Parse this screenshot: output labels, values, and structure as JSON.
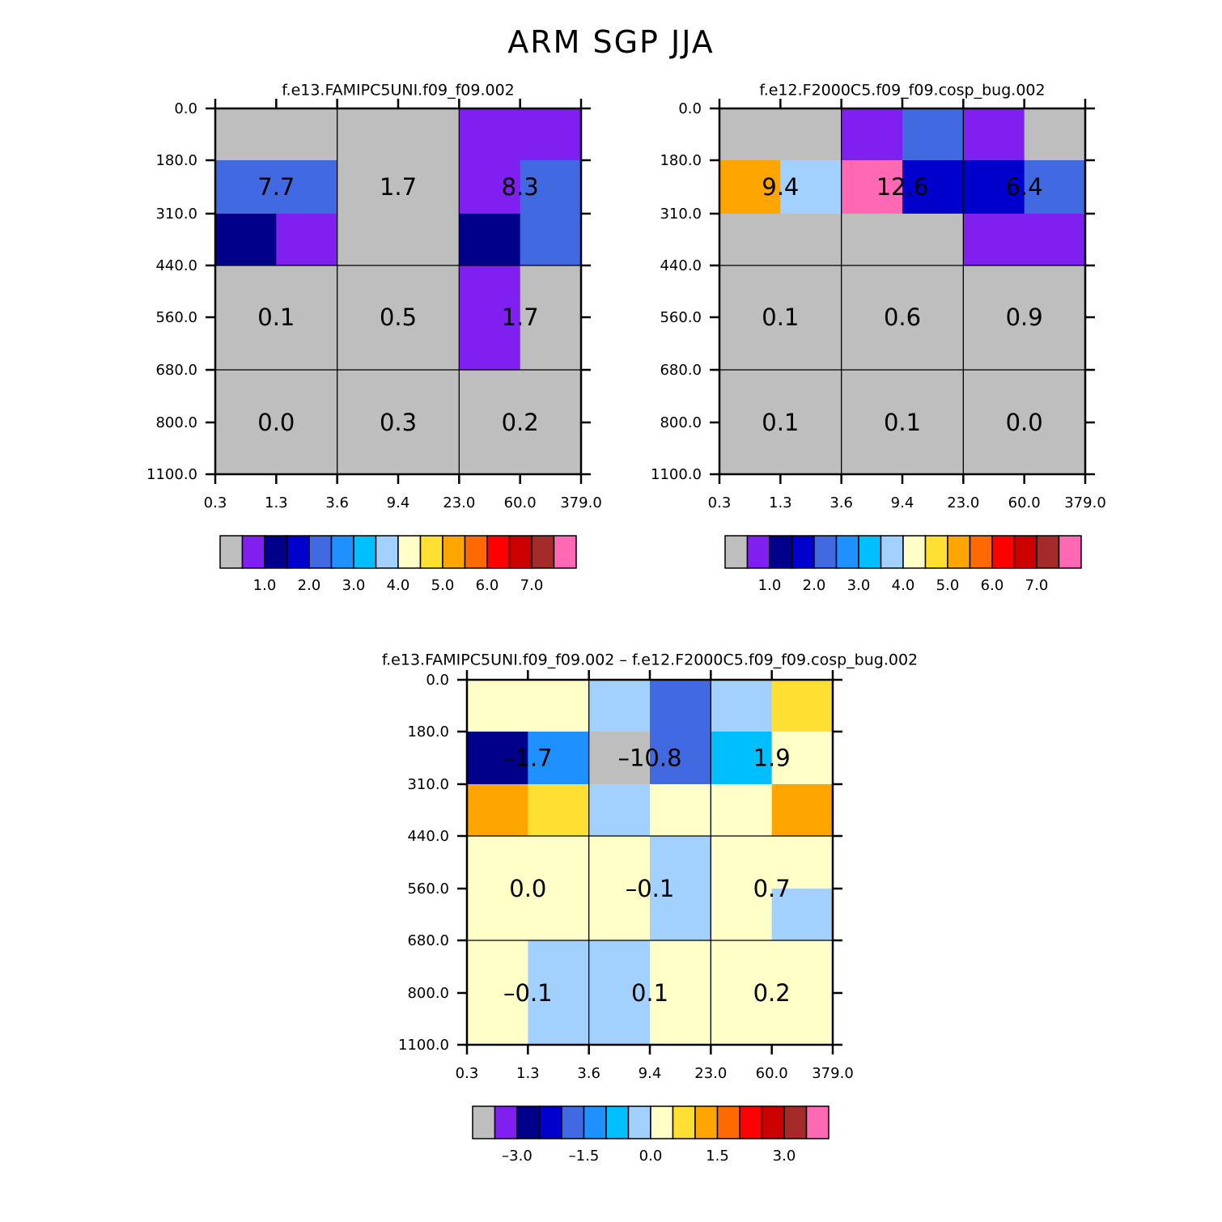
{
  "title": "ARM SGP JJA",
  "colors": {
    "gray": "#bebebe",
    "purple": "#8020f0",
    "navy": "#00008b",
    "blue": "#0000cd",
    "royal": "#4169e1",
    "dodger": "#1e90ff",
    "sky": "#00bfff",
    "lightblue": "#a2d0ff",
    "cream": "#ffffc8",
    "gold": "#ffe032",
    "orange": "#ffa500",
    "darkorange": "#ff6a00",
    "red": "#ff0000",
    "crimson": "#cd0000",
    "brown": "#a52a2a",
    "pink": "#ff69b4"
  },
  "chart_data": [
    {
      "type": "heatmap",
      "title": "f.e13.FAMIPC5UNI.f09_f09.002",
      "x_ticks": [
        "0.3",
        "1.3",
        "3.6",
        "9.4",
        "23.0",
        "60.0",
        "379.0"
      ],
      "y_ticks": [
        "0.0",
        "180.0",
        "310.0",
        "440.0",
        "560.0",
        "680.0",
        "800.0",
        "1100.0"
      ],
      "cells": [
        [
          "gray",
          "gray",
          "gray",
          "gray",
          "purple",
          "purple"
        ],
        [
          "royal",
          "royal",
          "gray",
          "gray",
          "purple",
          "royal"
        ],
        [
          "navy",
          "purple",
          "gray",
          "gray",
          "navy",
          "royal"
        ],
        [
          "gray",
          "gray",
          "gray",
          "gray",
          "purple",
          "gray"
        ],
        [
          "gray",
          "gray",
          "gray",
          "gray",
          "purple",
          "gray"
        ],
        [
          "gray",
          "gray",
          "gray",
          "gray",
          "gray",
          "gray"
        ],
        [
          "gray",
          "gray",
          "gray",
          "gray",
          "gray",
          "gray"
        ]
      ],
      "labels": [
        [
          "7.7",
          "1.7",
          "8.3"
        ],
        [
          "0.1",
          "0.5",
          "1.7"
        ],
        [
          "0.0",
          "0.3",
          "0.2"
        ]
      ],
      "colorbar": {
        "colors": [
          "gray",
          "purple",
          "navy",
          "blue",
          "royal",
          "dodger",
          "sky",
          "lightblue",
          "cream",
          "gold",
          "orange",
          "darkorange",
          "red",
          "crimson",
          "brown",
          "pink"
        ],
        "labels": [
          "1.0",
          "2.0",
          "3.0",
          "4.0",
          "5.0",
          "6.0",
          "7.0"
        ],
        "first_boundary": 2
      }
    },
    {
      "type": "heatmap",
      "title": "f.e12.F2000C5.f09_f09.cosp_bug.002",
      "x_ticks": [
        "0.3",
        "1.3",
        "3.6",
        "9.4",
        "23.0",
        "60.0",
        "379.0"
      ],
      "y_ticks": [
        "0.0",
        "180.0",
        "310.0",
        "440.0",
        "560.0",
        "680.0",
        "800.0",
        "1100.0"
      ],
      "cells": [
        [
          "gray",
          "gray",
          "purple",
          "royal",
          "purple",
          "gray"
        ],
        [
          "orange",
          "lightblue",
          "pink",
          "blue",
          "blue",
          "royal"
        ],
        [
          "gray",
          "gray",
          "gray",
          "gray",
          "purple",
          "purple"
        ],
        [
          "gray",
          "gray",
          "gray",
          "gray",
          "gray",
          "gray"
        ],
        [
          "gray",
          "gray",
          "gray",
          "gray",
          "gray",
          "gray"
        ],
        [
          "gray",
          "gray",
          "gray",
          "gray",
          "gray",
          "gray"
        ],
        [
          "gray",
          "gray",
          "gray",
          "gray",
          "gray",
          "gray"
        ]
      ],
      "labels": [
        [
          "9.4",
          "12.6",
          "6.4"
        ],
        [
          "0.1",
          "0.6",
          "0.9"
        ],
        [
          "0.1",
          "0.1",
          "0.0"
        ]
      ],
      "colorbar": {
        "colors": [
          "gray",
          "purple",
          "navy",
          "blue",
          "royal",
          "dodger",
          "sky",
          "lightblue",
          "cream",
          "gold",
          "orange",
          "darkorange",
          "red",
          "crimson",
          "brown",
          "pink"
        ],
        "labels": [
          "1.0",
          "2.0",
          "3.0",
          "4.0",
          "5.0",
          "6.0",
          "7.0"
        ],
        "first_boundary": 2
      }
    },
    {
      "type": "heatmap",
      "title": "f.e13.FAMIPC5UNI.f09_f09.002 – f.e12.F2000C5.f09_f09.cosp_bug.002",
      "x_ticks": [
        "0.3",
        "1.3",
        "3.6",
        "9.4",
        "23.0",
        "60.0",
        "379.0"
      ],
      "y_ticks": [
        "0.0",
        "180.0",
        "310.0",
        "440.0",
        "560.0",
        "680.0",
        "800.0",
        "1100.0"
      ],
      "cells": [
        [
          "cream",
          "cream",
          "lightblue",
          "royal",
          "lightblue",
          "gold"
        ],
        [
          "navy",
          "dodger",
          "gray",
          "royal",
          "sky",
          "cream"
        ],
        [
          "orange",
          "gold",
          "lightblue",
          "cream",
          "cream",
          "orange"
        ],
        [
          "cream",
          "cream",
          "cream",
          "lightblue",
          "cream",
          "cream"
        ],
        [
          "cream",
          "cream",
          "cream",
          "lightblue",
          "cream",
          "lightblue"
        ],
        [
          "cream",
          "lightblue",
          "lightblue",
          "cream",
          "cream",
          "cream"
        ],
        [
          "cream",
          "lightblue",
          "lightblue",
          "cream",
          "cream",
          "cream"
        ]
      ],
      "labels": [
        [
          "–1.7",
          "–10.8",
          "1.9"
        ],
        [
          "0.0",
          "–0.1",
          "0.7"
        ],
        [
          "–0.1",
          "0.1",
          "0.2"
        ]
      ],
      "colorbar": {
        "colors": [
          "gray",
          "purple",
          "navy",
          "blue",
          "royal",
          "dodger",
          "sky",
          "lightblue",
          "cream",
          "gold",
          "orange",
          "darkorange",
          "red",
          "crimson",
          "brown",
          "pink"
        ],
        "labels": [
          "–3.0",
          "–1.5",
          "0.0",
          "1.5",
          "3.0"
        ],
        "first_boundary": 2,
        "label_step": 3
      }
    }
  ]
}
